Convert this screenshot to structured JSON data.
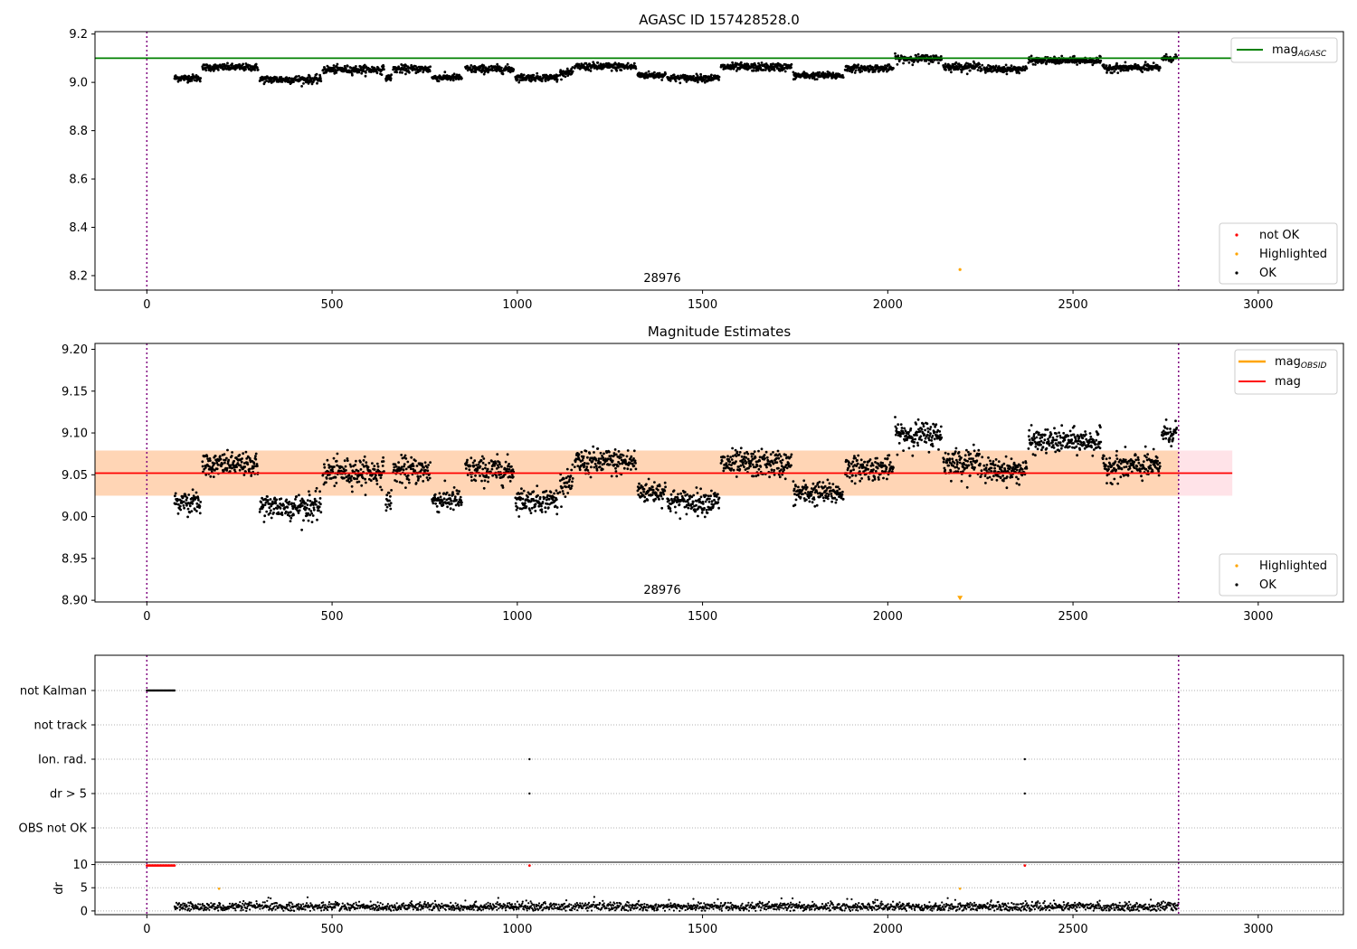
{
  "chart_data": [
    {
      "type": "scatter",
      "title": "AGASC ID 157428528.0",
      "obsid_label": "28976",
      "xlim": [
        -140,
        3230
      ],
      "ylim": [
        8.14,
        9.21
      ],
      "x_ticks": [
        0,
        500,
        1000,
        1500,
        2000,
        2500,
        3000
      ],
      "y_ticks": [
        8.2,
        8.4,
        8.6,
        8.8,
        9.0,
        9.2
      ],
      "y_tick_labels": [
        "8.2",
        "8.4",
        "8.6",
        "8.8",
        "9.0",
        "9.2"
      ],
      "vlines": [
        0,
        2785
      ],
      "hline": {
        "name": "mag_AGASC",
        "value": 9.1,
        "x_range": [
          -140,
          2930
        ],
        "color": "#008000"
      },
      "highlighted_point": {
        "x": 2195,
        "y": 8.225
      },
      "ok_segments": [
        {
          "x0": 75,
          "x1": 145,
          "y": 9.018,
          "sd": 0.007
        },
        {
          "x0": 150,
          "x1": 300,
          "y": 9.062,
          "sd": 0.007
        },
        {
          "x0": 305,
          "x1": 470,
          "y": 9.012,
          "sd": 0.008
        },
        {
          "x0": 475,
          "x1": 640,
          "y": 9.053,
          "sd": 0.008
        },
        {
          "x0": 645,
          "x1": 660,
          "y": 9.02,
          "sd": 0.006
        },
        {
          "x0": 665,
          "x1": 765,
          "y": 9.055,
          "sd": 0.008
        },
        {
          "x0": 770,
          "x1": 850,
          "y": 9.02,
          "sd": 0.007
        },
        {
          "x0": 860,
          "x1": 990,
          "y": 9.055,
          "sd": 0.008
        },
        {
          "x0": 995,
          "x1": 1110,
          "y": 9.02,
          "sd": 0.007
        },
        {
          "x0": 1115,
          "x1": 1150,
          "y": 9.04,
          "sd": 0.007
        },
        {
          "x0": 1155,
          "x1": 1320,
          "y": 9.065,
          "sd": 0.008
        },
        {
          "x0": 1325,
          "x1": 1400,
          "y": 9.03,
          "sd": 0.007
        },
        {
          "x0": 1405,
          "x1": 1545,
          "y": 9.018,
          "sd": 0.007
        },
        {
          "x0": 1550,
          "x1": 1740,
          "y": 9.063,
          "sd": 0.008
        },
        {
          "x0": 1745,
          "x1": 1880,
          "y": 9.028,
          "sd": 0.007
        },
        {
          "x0": 1885,
          "x1": 2015,
          "y": 9.058,
          "sd": 0.007
        },
        {
          "x0": 2020,
          "x1": 2145,
          "y": 9.098,
          "sd": 0.008
        },
        {
          "x0": 2150,
          "x1": 2255,
          "y": 9.065,
          "sd": 0.008
        },
        {
          "x0": 2260,
          "x1": 2375,
          "y": 9.055,
          "sd": 0.007
        },
        {
          "x0": 2380,
          "x1": 2575,
          "y": 9.09,
          "sd": 0.007
        },
        {
          "x0": 2580,
          "x1": 2735,
          "y": 9.06,
          "sd": 0.008
        },
        {
          "x0": 2740,
          "x1": 2780,
          "y": 9.1,
          "sd": 0.007
        }
      ],
      "legends": {
        "line": [
          "mag",
          "AGASC"
        ],
        "points": [
          "not OK",
          "Highlighted",
          "OK"
        ]
      }
    },
    {
      "type": "scatter",
      "title": "Magnitude Estimates",
      "obsid_label": "28976",
      "xlim": [
        -140,
        3230
      ],
      "ylim": [
        8.898,
        9.207
      ],
      "x_ticks": [
        0,
        500,
        1000,
        1500,
        2000,
        2500,
        3000
      ],
      "y_ticks": [
        8.9,
        8.95,
        9.0,
        9.05,
        9.1,
        9.15,
        9.2
      ],
      "y_tick_labels": [
        "8.90",
        "8.95",
        "9.00",
        "9.05",
        "9.10",
        "9.15",
        "9.20"
      ],
      "vlines": [
        0,
        2785
      ],
      "mag_line": {
        "name": "mag",
        "value": 9.052,
        "x_range": [
          -140,
          2930
        ],
        "color": "#ff0000"
      },
      "mag_band": {
        "low": 9.025,
        "high": 9.079,
        "x_range": [
          -140,
          2930
        ]
      },
      "obsid_band": {
        "low": 9.025,
        "high": 9.079,
        "x_range": [
          -140,
          2785
        ]
      },
      "highlighted_point": {
        "x": 2195,
        "y": 8.902
      },
      "legends": {
        "line": [
          [
            "mag",
            "OBSID"
          ],
          [
            "mag",
            ""
          ]
        ],
        "points": [
          "Highlighted",
          "OK"
        ]
      }
    },
    {
      "type": "scatter",
      "xlim": [
        -140,
        3230
      ],
      "categories": [
        "not Kalman",
        "not track",
        "Ion. rad.",
        "dr > 5",
        "OBS not OK"
      ],
      "flags": {
        "not Kalman": {
          "x_range": [
            0,
            75
          ]
        },
        "not track": {
          "x": []
        },
        "Ion. rad.": {
          "x": [
            1033,
            2370
          ]
        },
        "dr > 5": {
          "x": [
            1033,
            2370
          ]
        },
        "OBS not OK": {
          "x": []
        }
      },
      "vlines": [
        0,
        2785
      ]
    },
    {
      "type": "scatter",
      "ylabel": "dr",
      "xlim": [
        -140,
        3230
      ],
      "ylim": [
        -0.8,
        10.5
      ],
      "x_ticks": [
        0,
        500,
        1000,
        1500,
        2000,
        2500,
        3000
      ],
      "y_ticks": [
        0,
        5,
        10
      ],
      "red_points": {
        "x_range": [
          0,
          75
        ],
        "y": 9.8,
        "extra_x": [
          1033,
          2370
        ]
      },
      "orange_points": [
        {
          "x": 195,
          "y": 4.8
        },
        {
          "x": 2195,
          "y": 4.8
        }
      ],
      "dr_segments": [
        {
          "x0": 75,
          "x1": 2785,
          "mean": 0.9,
          "sd": 0.45
        }
      ],
      "vlines": [
        0,
        2785
      ]
    }
  ]
}
